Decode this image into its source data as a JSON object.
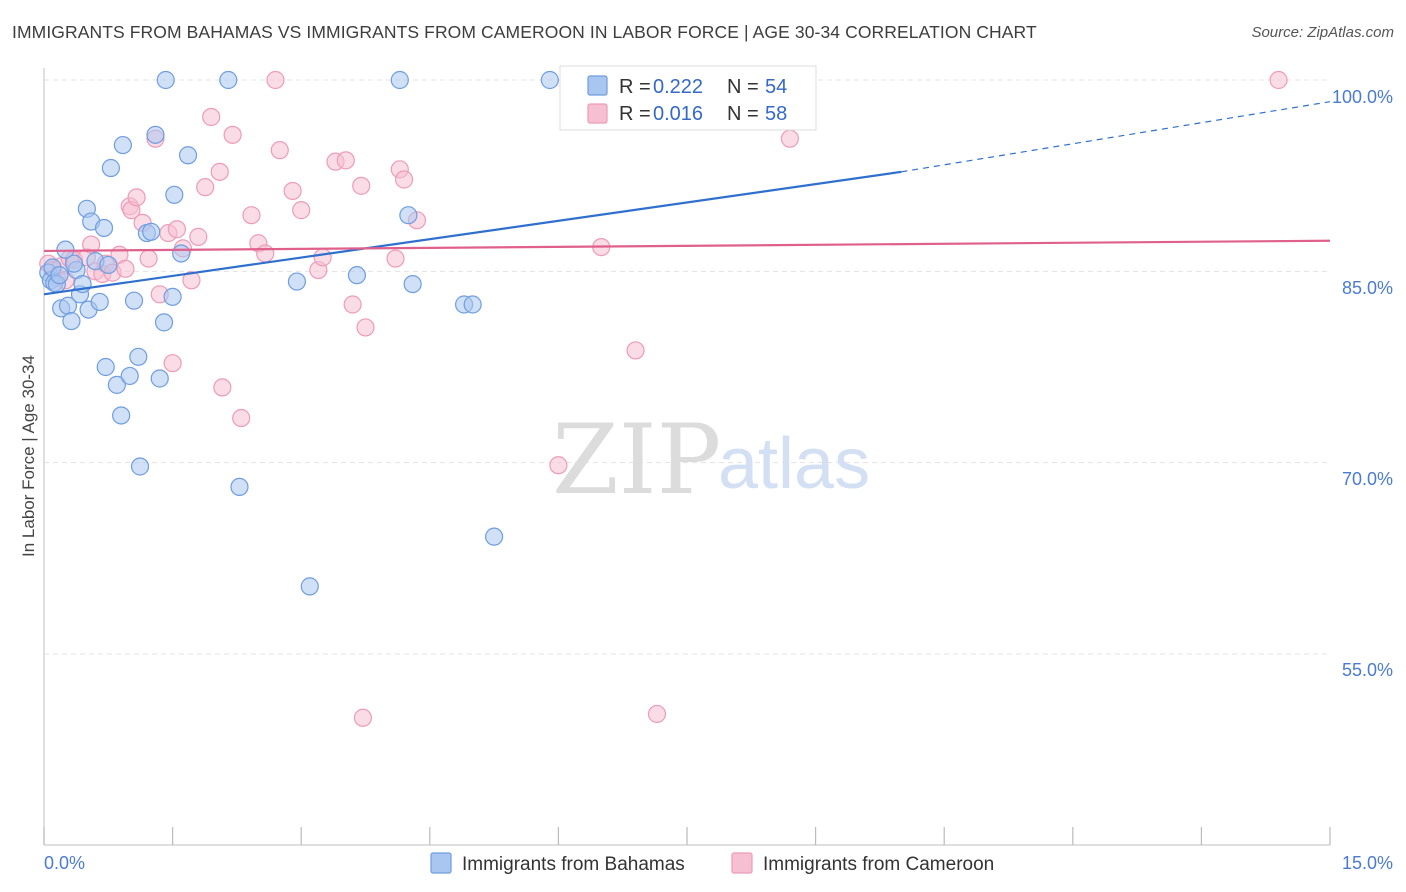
{
  "header": {
    "title": "IMMIGRANTS FROM BAHAMAS VS IMMIGRANTS FROM CAMEROON IN LABOR FORCE | AGE 30-34 CORRELATION CHART",
    "source": "Source: ZipAtlas.com"
  },
  "watermark": {
    "zip": "ZIP",
    "atlas": "atlas"
  },
  "legend": {
    "rows": [
      {
        "r_label": "R =",
        "r_value": "0.222",
        "n_label": "N =",
        "n_value": "54",
        "color": "#7ba7e8"
      },
      {
        "r_label": "R =",
        "r_value": "0.016",
        "n_label": "N =",
        "n_value": "58",
        "color": "#f2a3bf"
      }
    ]
  },
  "colors": {
    "blue_fill": "#a9c6f0",
    "blue_stroke": "#6f9de0",
    "blue_line": "#2f6fcf",
    "pink_fill": "#f6bfd2",
    "pink_stroke": "#ee9bb8",
    "pink_line": "#e0608c",
    "axis_text": "#4a7bd0",
    "grid": "#e3e3e3"
  },
  "chart_data": {
    "type": "scatter",
    "title": "IMMIGRANTS FROM BAHAMAS VS IMMIGRANTS FROM CAMEROON IN LABOR FORCE | AGE 30-34 CORRELATION CHART",
    "xlabel": "",
    "ylabel": "In Labor Force | Age 30-34",
    "xlim": [
      0,
      15
    ],
    "ylim": [
      40,
      102
    ],
    "x_tick_labels": [
      "0.0%",
      "15.0%"
    ],
    "y_ticks": [
      55,
      70,
      85,
      100
    ],
    "y_tick_labels": [
      "55.0%",
      "70.0%",
      "85.0%",
      "100.0%"
    ],
    "grid": true,
    "legend_position": "top-center",
    "series": [
      {
        "name": "Immigrants from Bahamas",
        "r": 0.222,
        "n": 54,
        "trend": {
          "x": [
            0,
            10.0
          ],
          "y": [
            83.2,
            92.8
          ],
          "dashed_to": [
            15,
            98.3
          ]
        },
        "points": [
          [
            0.05,
            84.9
          ],
          [
            0.08,
            84.3
          ],
          [
            0.1,
            85.3
          ],
          [
            0.12,
            84.1
          ],
          [
            0.15,
            84.0
          ],
          [
            0.2,
            82.1
          ],
          [
            0.25,
            86.7
          ],
          [
            0.28,
            82.3
          ],
          [
            0.32,
            81.1
          ],
          [
            0.38,
            85.1
          ],
          [
            0.42,
            83.2
          ],
          [
            0.45,
            84.0
          ],
          [
            0.5,
            89.9
          ],
          [
            0.52,
            82.0
          ],
          [
            0.55,
            88.9
          ],
          [
            0.6,
            85.8
          ],
          [
            0.65,
            82.6
          ],
          [
            0.7,
            88.4
          ],
          [
            0.72,
            77.5
          ],
          [
            0.75,
            85.5
          ],
          [
            0.78,
            93.1
          ],
          [
            0.85,
            76.1
          ],
          [
            0.9,
            73.7
          ],
          [
            0.92,
            94.9
          ],
          [
            1.0,
            76.8
          ],
          [
            1.05,
            82.7
          ],
          [
            1.1,
            78.3
          ],
          [
            1.12,
            69.7
          ],
          [
            1.2,
            88.0
          ],
          [
            1.25,
            88.1
          ],
          [
            1.3,
            95.7
          ],
          [
            1.35,
            76.6
          ],
          [
            1.4,
            81.0
          ],
          [
            1.42,
            100.0
          ],
          [
            1.5,
            83.0
          ],
          [
            1.52,
            91.0
          ],
          [
            1.6,
            86.4
          ],
          [
            1.68,
            94.1
          ],
          [
            2.15,
            100.0
          ],
          [
            2.28,
            68.1
          ],
          [
            2.95,
            84.2
          ],
          [
            3.1,
            60.3
          ],
          [
            3.65,
            84.7
          ],
          [
            4.15,
            100.0
          ],
          [
            4.25,
            89.4
          ],
          [
            4.3,
            84.0
          ],
          [
            4.9,
            82.4
          ],
          [
            5.0,
            82.4
          ],
          [
            5.25,
            64.2
          ],
          [
            5.9,
            100.0
          ],
          [
            6.85,
            100.0
          ],
          [
            7.5,
            100.0
          ],
          [
            0.18,
            84.7
          ],
          [
            0.35,
            85.6
          ]
        ]
      },
      {
        "name": "Immigrants from Cameroon",
        "r": 0.016,
        "n": 58,
        "trend": {
          "x": [
            0,
            15
          ],
          "y": [
            86.6,
            87.4
          ]
        },
        "points": [
          [
            0.05,
            85.6
          ],
          [
            0.1,
            85.1
          ],
          [
            0.15,
            84.5
          ],
          [
            0.2,
            85.4
          ],
          [
            0.25,
            84.3
          ],
          [
            0.3,
            86.0
          ],
          [
            0.35,
            85.9
          ],
          [
            0.5,
            86.1
          ],
          [
            0.55,
            87.1
          ],
          [
            0.6,
            85.0
          ],
          [
            0.68,
            84.8
          ],
          [
            0.72,
            85.6
          ],
          [
            0.8,
            84.9
          ],
          [
            0.88,
            86.3
          ],
          [
            0.95,
            85.2
          ],
          [
            1.0,
            90.1
          ],
          [
            1.02,
            89.8
          ],
          [
            1.08,
            90.8
          ],
          [
            1.15,
            88.8
          ],
          [
            1.22,
            86.0
          ],
          [
            1.3,
            95.4
          ],
          [
            1.35,
            83.2
          ],
          [
            1.45,
            88.0
          ],
          [
            1.5,
            77.8
          ],
          [
            1.55,
            88.3
          ],
          [
            1.62,
            86.8
          ],
          [
            1.72,
            84.3
          ],
          [
            1.8,
            87.7
          ],
          [
            1.88,
            91.6
          ],
          [
            1.95,
            97.1
          ],
          [
            2.05,
            92.8
          ],
          [
            2.08,
            75.9
          ],
          [
            2.2,
            95.7
          ],
          [
            2.3,
            73.5
          ],
          [
            2.42,
            89.4
          ],
          [
            2.5,
            87.2
          ],
          [
            2.58,
            86.4
          ],
          [
            2.7,
            100.0
          ],
          [
            2.75,
            94.5
          ],
          [
            2.9,
            91.3
          ],
          [
            3.0,
            89.8
          ],
          [
            3.2,
            85.1
          ],
          [
            3.25,
            86.1
          ],
          [
            3.4,
            93.6
          ],
          [
            3.52,
            93.7
          ],
          [
            3.6,
            82.4
          ],
          [
            3.7,
            91.7
          ],
          [
            3.75,
            80.6
          ],
          [
            3.72,
            50.0
          ],
          [
            4.1,
            86.0
          ],
          [
            4.15,
            93.0
          ],
          [
            4.2,
            92.2
          ],
          [
            4.35,
            89.0
          ],
          [
            6.0,
            69.8
          ],
          [
            6.5,
            86.9
          ],
          [
            6.9,
            78.8
          ],
          [
            7.15,
            50.3
          ],
          [
            8.7,
            95.4
          ]
        ]
      },
      {
        "name": "Immigrants from Cameroon (top row)",
        "points": [
          [
            7.45,
            100.0
          ],
          [
            8.9,
            100.0
          ],
          [
            14.4,
            100.0
          ]
        ]
      }
    ]
  },
  "bottom_legend": {
    "items": [
      {
        "label": "Immigrants from Bahamas"
      },
      {
        "label": "Immigrants from Cameroon"
      }
    ]
  }
}
